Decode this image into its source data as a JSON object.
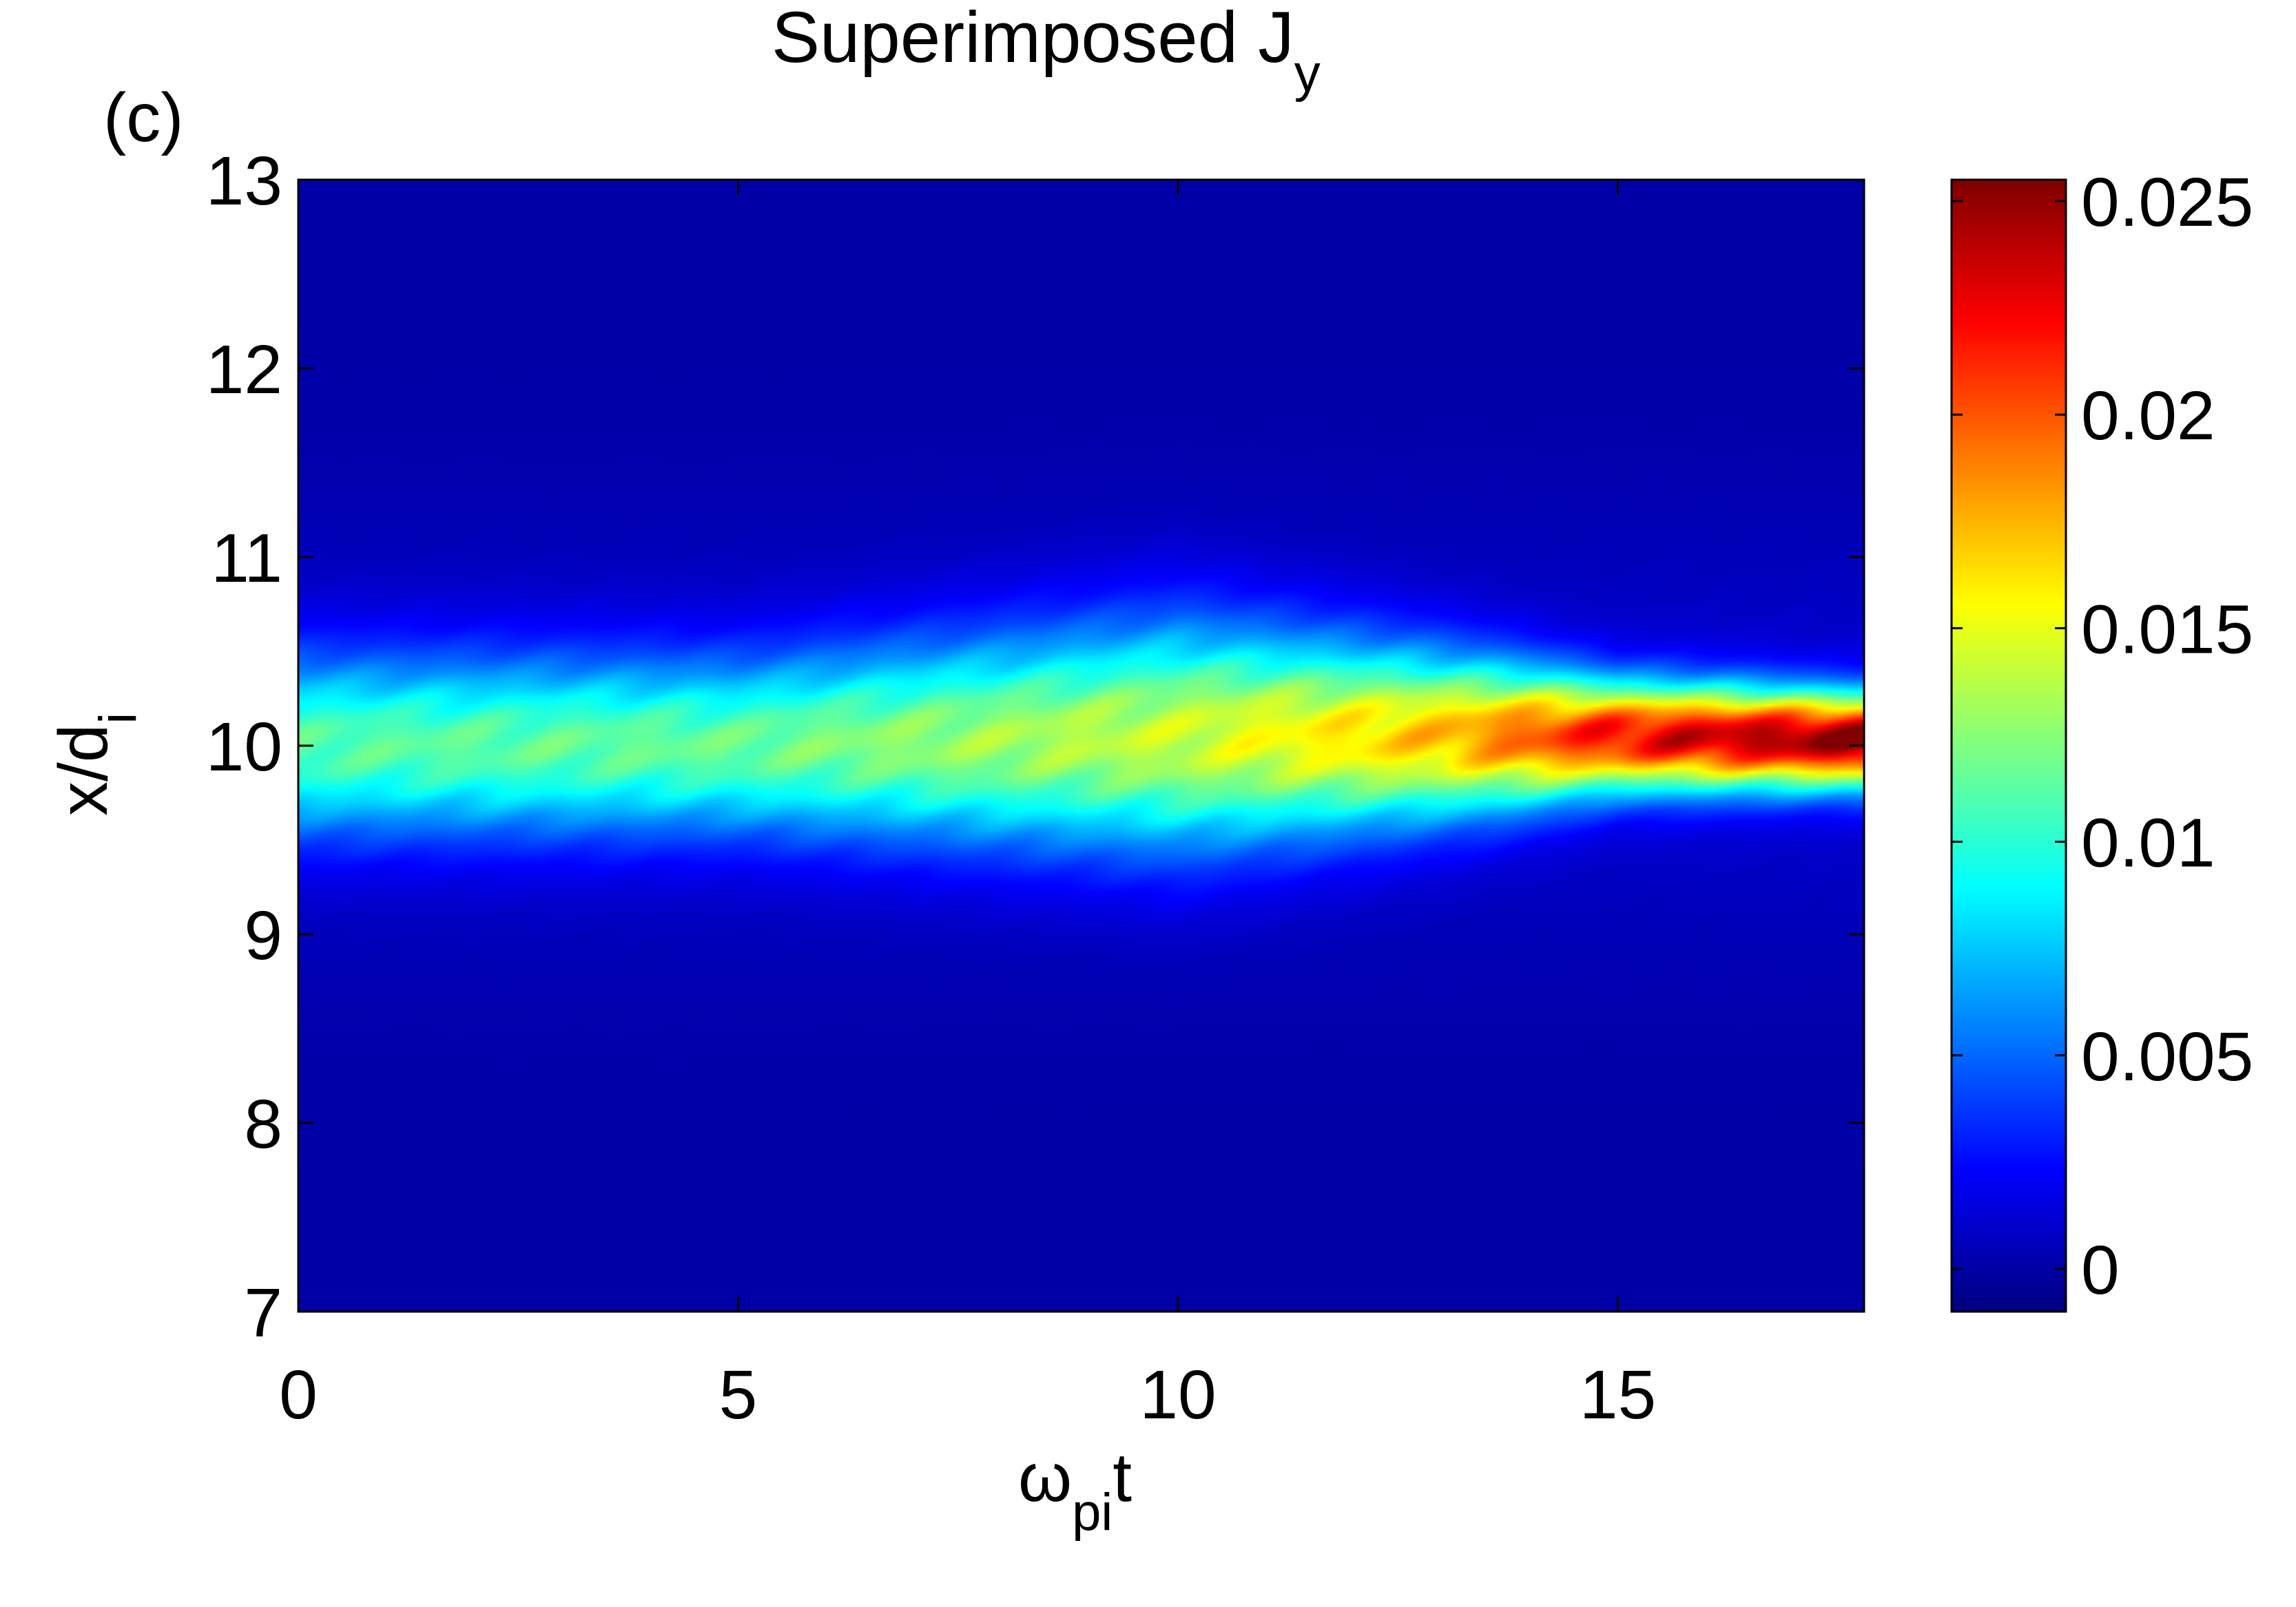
{
  "panel_label": "(c)",
  "chart_data": {
    "type": "heatmap",
    "title": "Superimposed J",
    "title_subscript": "y",
    "xlabel": "ω",
    "xlabel_subscript": "pi",
    "xlabel_suffix": "t",
    "ylabel": "x/d",
    "ylabel_subscript": "i",
    "xlim": [
      0,
      17.8
    ],
    "ylim": [
      7,
      13
    ],
    "xticks": [
      0,
      5,
      10,
      15
    ],
    "yticks": [
      7,
      8,
      9,
      10,
      11,
      12,
      13
    ],
    "colorbar": {
      "clim": [
        -0.001,
        0.0255
      ],
      "ticks": [
        0,
        0.005,
        0.01,
        0.015,
        0.02,
        0.025
      ],
      "tick_labels": [
        "0",
        "0.005",
        "0.01",
        "0.015",
        "0.02",
        "0.025"
      ],
      "colormap": "jet"
    },
    "field": {
      "description_points": [
        {
          "t": 0,
          "center": 10.0,
          "sigma": 0.33,
          "peak": 0.01
        },
        {
          "t": 5,
          "center": 10.0,
          "sigma": 0.32,
          "peak": 0.0105
        },
        {
          "t": 10,
          "center": 10.05,
          "sigma": 0.42,
          "peak": 0.013
        },
        {
          "t": 13,
          "center": 10.05,
          "sigma": 0.3,
          "peak": 0.016
        },
        {
          "t": 15,
          "center": 10.05,
          "sigma": 0.2,
          "peak": 0.021
        },
        {
          "t": 17.8,
          "center": 10.03,
          "sigma": 0.17,
          "peak": 0.0245
        }
      ]
    }
  }
}
